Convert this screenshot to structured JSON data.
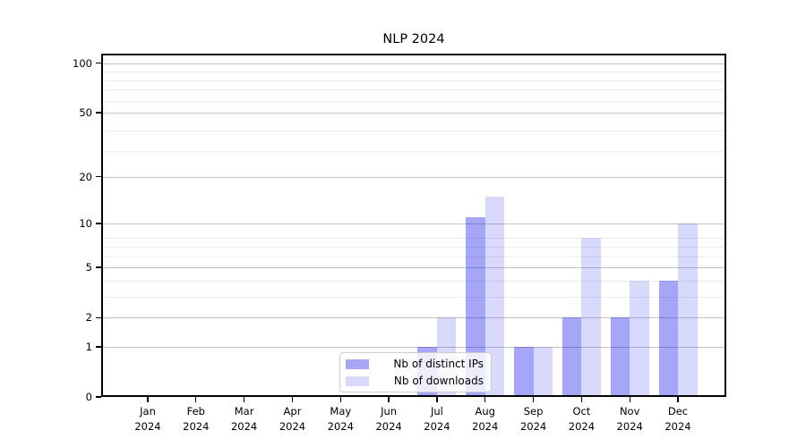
{
  "title": "NLP 2024",
  "colors": {
    "series1_fill": "rgba(0,0,235,0.35)",
    "series2_fill": "rgba(0,0,235,0.15)",
    "grid_major": "#c3c3c3",
    "grid_minor": "#ececec",
    "axis": "#000000",
    "legend_border": "#cccccc",
    "legend_bg": "rgba(255,255,255,0.8)",
    "text": "#000000"
  },
  "chart_data": {
    "type": "bar",
    "title": "NLP 2024",
    "categories": [
      "Jan 2024",
      "Feb 2024",
      "Mar 2024",
      "Apr 2024",
      "May 2024",
      "Jun 2024",
      "Jul 2024",
      "Aug 2024",
      "Sep 2024",
      "Oct 2024",
      "Nov 2024",
      "Dec 2024"
    ],
    "series": [
      {
        "name": "Nb of distinct IPs",
        "values": [
          0,
          0,
          0,
          0,
          0,
          0,
          1,
          11,
          1,
          2,
          2,
          4
        ]
      },
      {
        "name": "Nb of downloads",
        "values": [
          0,
          0,
          0,
          0,
          0,
          0,
          2,
          15,
          1,
          8,
          4,
          10
        ]
      }
    ],
    "xlabel": "",
    "ylabel": "",
    "yscale": "log10(value+1)",
    "y_ticks": [
      0,
      1,
      2,
      5,
      10,
      20,
      50,
      100
    ],
    "y_minor_gridlines_at_value_plus_1": [
      3,
      4,
      5,
      6,
      7,
      8,
      9,
      30,
      40,
      50,
      60,
      70,
      80,
      90
    ],
    "ylim": [
      0,
      115
    ],
    "grid": "horizontal, major and minor, drawn under translucent bars",
    "legend_position": "lower center"
  }
}
